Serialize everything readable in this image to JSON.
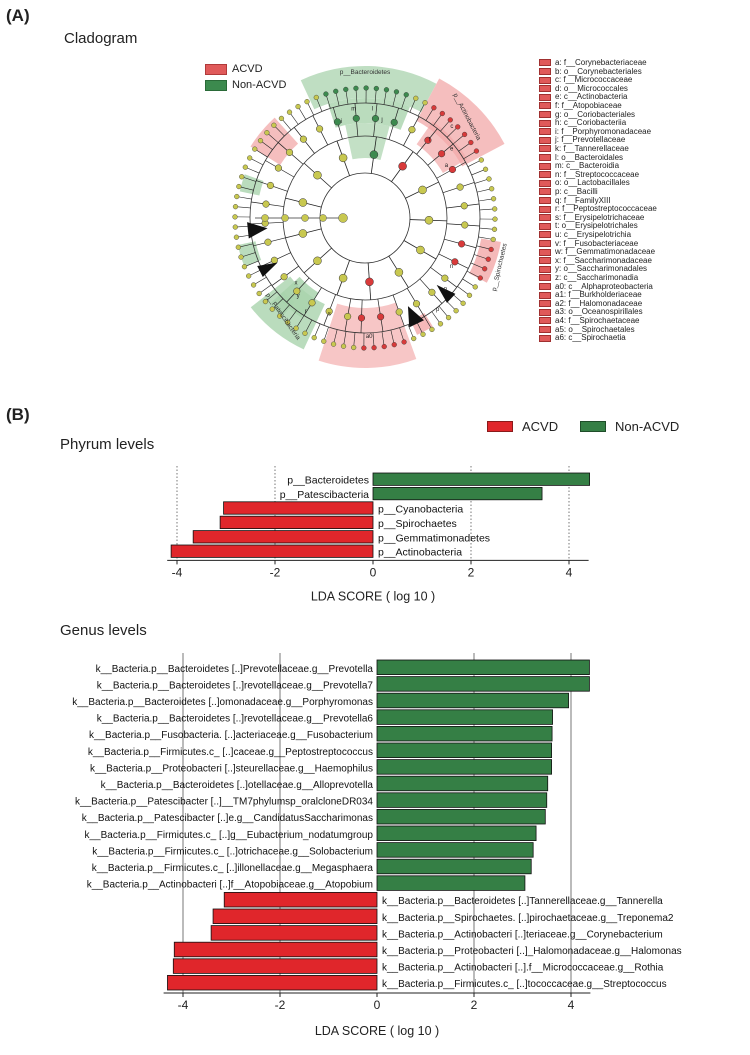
{
  "panel_a": {
    "label": "(A)",
    "title": "Cladogram",
    "legend": [
      {
        "name": "ACVD",
        "color": "#e05a5a"
      },
      {
        "name": "Non-ACVD",
        "color": "#3c8a4e"
      }
    ],
    "sector_labels": [
      "p__Bacteroidetes",
      "p__Actinobacteria",
      "p__Spirochaetes",
      "p__Patescibacteria"
    ],
    "clade_key": [
      "a: f__Corynebacteriaceae",
      "b: o__Corynebacteriales",
      "c: f__Micrococcaceae",
      "d: o__Micrococcales",
      "e: c__Actinobacteria",
      "f: f__Atopobiaceae",
      "g: o__Coriobacteriales",
      "h: c__Coriobacteriia",
      "i: f__Porphyromonadaceae",
      "j: f__Prevotellaceae",
      "k: f__Tannerellaceae",
      "l: o__Bacteroidales",
      "m: c__Bacteroidia",
      "n: f__Streptococcaceae",
      "o: o__Lactobacillales",
      "p: c__Bacilli",
      "q: f__FamilyXIII",
      "r: f__Peptostreptococcaceae",
      "s: f__Erysipelotrichaceae",
      "t: o__Erysipelotrichales",
      "u: c__Erysipelotrichia",
      "v: f__Fusobacteriaceae",
      "w: f__Gemmatimonadaceae",
      "x: f__Saccharimonadaceae",
      "y: o__Saccharimonadales",
      "z: c__Saccharimonadia",
      "a0: c__Alphaproteobacteria",
      "a1: f__Burkholderiaceae",
      "a2: f__Halomonadaceae",
      "a3: o__Oceanospirillales",
      "a4: f__Spirochaetaceae",
      "a5: o__Spirochaetales",
      "a6: c__Spirochaetia"
    ],
    "inner_letters": [
      "m",
      "l",
      "j",
      "i",
      "f",
      "e",
      "c",
      "a",
      "n",
      "o",
      "p",
      "s",
      "r",
      "y",
      "x",
      "a0"
    ]
  },
  "panel_b": {
    "label": "(B)",
    "legend": [
      {
        "name": "ACVD",
        "color": "#e0262b"
      },
      {
        "name": "Non-ACVD",
        "color": "#357f45"
      }
    ]
  },
  "chart_data": [
    {
      "type": "bar",
      "orientation": "horizontal",
      "title": "Phyrum levels",
      "xlabel": "LDA SCORE ( log 10 )",
      "xlim": [
        -4.2,
        4.4
      ],
      "xticks": [
        -4,
        -2,
        0,
        2,
        4
      ],
      "categories": [
        "p__Bacteroidetes",
        "p__Patescibacteria",
        "p__Cyanobacteria",
        "p__Spirochaetes",
        "p__Gemmatimonadetes",
        "p__Actinobacteria"
      ],
      "values": [
        4.42,
        3.45,
        -3.05,
        -3.12,
        -3.67,
        -4.12
      ],
      "groups": [
        "Non-ACVD",
        "Non-ACVD",
        "ACVD",
        "ACVD",
        "ACVD",
        "ACVD"
      ]
    },
    {
      "type": "bar",
      "orientation": "horizontal",
      "title": "Genus levels",
      "xlabel": "LDA SCORE ( log 10 )",
      "xlim": [
        -4.4,
        4.4
      ],
      "xticks": [
        -4,
        -2,
        0,
        2,
        4
      ],
      "categories": [
        "k__Bacteria.p__Bacteroidetes [..]Prevotellaceae.g__Prevotella",
        "k__Bacteria.p__Bacteroidetes [..]revotellaceae.g__Prevotella7",
        "k__Bacteria.p__Bacteroidetes [..]omonadaceae.g__Porphyromonas",
        "k__Bacteria.p__Bacteroidetes [..]revotellaceae.g__Prevotella6",
        "k__Bacteria.p__Fusobacteria. [..]acteriaceae.g__Fusobacterium",
        "k__Bacteria.p__Firmicutes.c_ [..]caceae.g__Peptostreptococcus",
        "k__Bacteria.p__Proteobacteri [..]steurellaceae.g__Haemophilus",
        "k__Bacteria.p__Bacteroidetes [..]otellaceae.g__Alloprevotella",
        "k__Bacteria.p__Patescibacter [..]__TM7phylumsp_oralcloneDR034",
        "k__Bacteria.p__Patescibacter [..]e.g__CandidatusSaccharimonas",
        "k__Bacteria.p__Firmicutes.c_ [..]g__Eubacterium_nodatumgroup",
        "k__Bacteria.p__Firmicutes.c_ [..]otrichaceae.g__Solobacterium",
        "k__Bacteria.p__Firmicutes.c_ [..]illonellaceae.g__Megasphaera",
        "k__Bacteria.p__Actinobacteri [..]f__Atopobiaceae.g__Atopobium",
        "k__Bacteria.p__Bacteroidetes [..]Tannerellaceae.g__Tannerella",
        "k__Bacteria.p__Spirochaetes. [..]pirochaetaceae.g__Treponema2",
        "k__Bacteria.p__Actinobacteri [..]teriaceae.g__Corynebacterium",
        "k__Bacteria.p__Proteobacteri [..]_Halomonadaceae.g__Halomonas",
        "k__Bacteria.p__Actinobacteri [..].f__Micrococcaceae.g__Rothia",
        "k__Bacteria.p__Firmicutes.c_ [..]tococcaceae.g__Streptococcus"
      ],
      "values": [
        4.38,
        4.38,
        3.95,
        3.62,
        3.61,
        3.6,
        3.6,
        3.52,
        3.5,
        3.47,
        3.28,
        3.22,
        3.18,
        3.05,
        -3.15,
        -3.38,
        -3.42,
        -4.18,
        -4.2,
        -4.32
      ],
      "groups": [
        "Non-ACVD",
        "Non-ACVD",
        "Non-ACVD",
        "Non-ACVD",
        "Non-ACVD",
        "Non-ACVD",
        "Non-ACVD",
        "Non-ACVD",
        "Non-ACVD",
        "Non-ACVD",
        "Non-ACVD",
        "Non-ACVD",
        "Non-ACVD",
        "Non-ACVD",
        "ACVD",
        "ACVD",
        "ACVD",
        "ACVD",
        "ACVD",
        "ACVD"
      ]
    }
  ]
}
